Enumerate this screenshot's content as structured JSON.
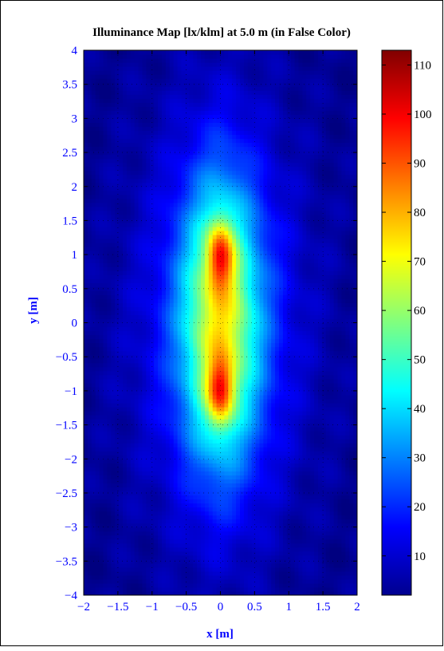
{
  "chart_data": {
    "type": "heatmap",
    "title": "Illuminance Map [lx/klm] at 5.0 m (in False Color)",
    "xlabel": "x [m]",
    "ylabel": "y [m]",
    "xlim": [
      -2,
      2
    ],
    "ylim": [
      -4,
      4
    ],
    "x_ticks": [
      -2,
      -1.5,
      -1,
      -0.5,
      0,
      0.5,
      1,
      1.5,
      2
    ],
    "x_tick_labels": [
      "−2",
      "−1.5",
      "−1",
      "−0.5",
      "0",
      "0.5",
      "1",
      "1.5",
      "2"
    ],
    "y_ticks": [
      4,
      3.5,
      3,
      2.5,
      2,
      1.5,
      1,
      0.5,
      0,
      -0.5,
      -1,
      -1.5,
      -2,
      -2.5,
      -3,
      -3.5,
      -4
    ],
    "y_tick_labels": [
      "4",
      "3.5",
      "3",
      "2.5",
      "2",
      "1.5",
      "1",
      "0.5",
      "0",
      "−0.5",
      "−1",
      "−1.5",
      "−2",
      "−2.5",
      "−3",
      "−3.5",
      "−4"
    ],
    "colorbar": {
      "colormap": "jet",
      "range": [
        2,
        113
      ],
      "ticks": [
        10,
        20,
        30,
        40,
        50,
        60,
        70,
        80,
        90,
        100,
        110
      ],
      "tick_labels": [
        "10",
        "20",
        "30",
        "40",
        "50",
        "60",
        "70",
        "80",
        "90",
        "100",
        "110"
      ]
    },
    "grid": true,
    "grid_style": "dotted",
    "peaks": [
      {
        "x": 0,
        "y": 1.0,
        "value": 112
      },
      {
        "x": 0,
        "y": -1.0,
        "value": 112
      }
    ],
    "center_value_at_origin": 72,
    "min_value_at_corners": 5
  },
  "colors": {
    "label_color": "#0000ff",
    "title_color": "#000000"
  }
}
